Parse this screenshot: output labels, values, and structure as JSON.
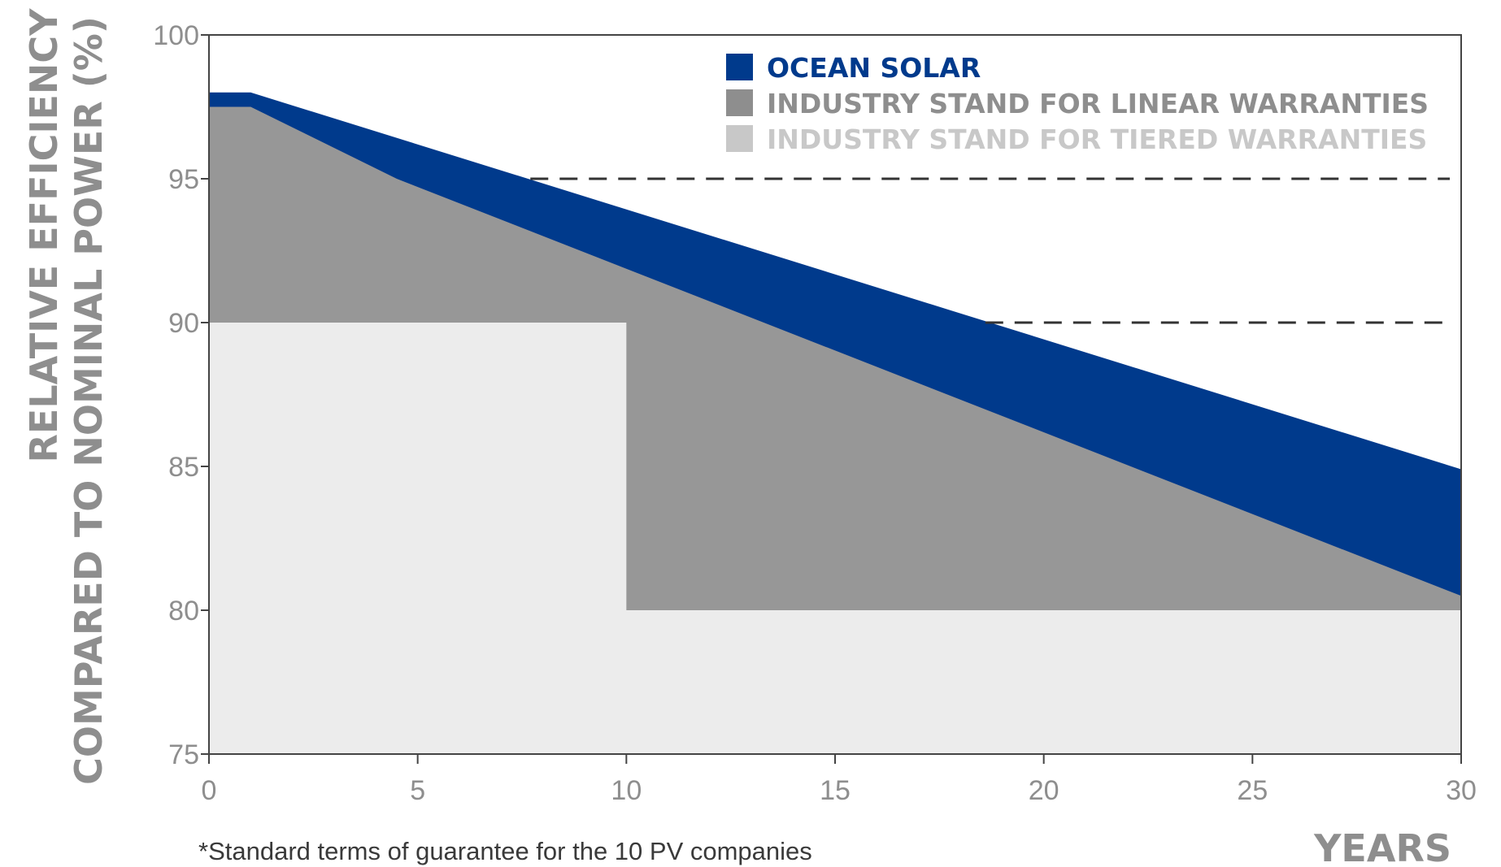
{
  "chart_data": {
    "type": "area",
    "ylabel_line1": "RELATIVE EFFICIENCY",
    "ylabel_line2": "COMPARED TO NOMINAL POWER  (%)",
    "xlabel": "YEARS",
    "footnote": "*Standard terms of guarantee for the 10 PV companies",
    "xlim": [
      0,
      30
    ],
    "ylim": [
      75,
      100
    ],
    "x_ticks": [
      "0",
      "5",
      "10",
      "15",
      "20",
      "25",
      "30"
    ],
    "y_ticks": [
      "75",
      "80",
      "85",
      "90",
      "95",
      "100"
    ],
    "grid": false,
    "legend_position": "top-right",
    "reference_lines": [
      {
        "y": 95,
        "x_start": 7.7,
        "x_end": 30,
        "style": "dashed"
      },
      {
        "y": 90,
        "x_start": 18.6,
        "x_end": 30,
        "style": "dashed"
      }
    ],
    "series": [
      {
        "name": "OCEAN SOLAR",
        "color": "#003a8c",
        "legend_color": "#003a8c",
        "points": [
          [
            0,
            98
          ],
          [
            1,
            98
          ],
          [
            30,
            84.9
          ]
        ]
      },
      {
        "name": "INDUSTRY STAND FOR LINEAR WARRANTIES",
        "color": "#979797",
        "legend_color": "#8e8e8e",
        "points": [
          [
            0,
            97.5
          ],
          [
            1,
            97.5
          ],
          [
            4.5,
            95
          ],
          [
            30,
            80.5
          ]
        ]
      },
      {
        "name": "INDUSTRY STAND FOR TIERED WARRANTIES",
        "color": "#ececec",
        "legend_color": "#c8c8c8",
        "points": [
          [
            0,
            90
          ],
          [
            10,
            90
          ],
          [
            10,
            80
          ],
          [
            30,
            80
          ]
        ]
      }
    ]
  }
}
